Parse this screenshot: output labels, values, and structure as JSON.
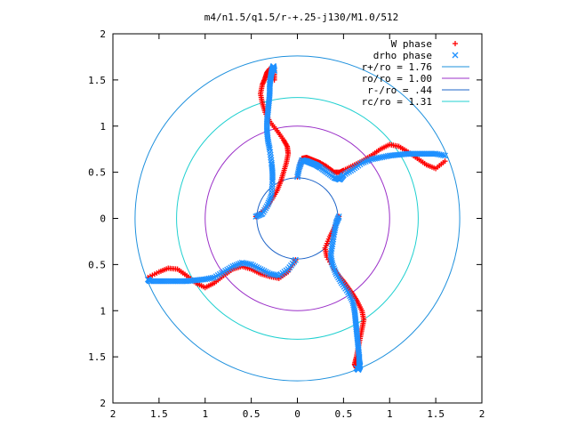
{
  "chart_data": {
    "type": "scatter",
    "title": "m4/n1.5/q1.5/r-+.25-j130/M1.0/512",
    "xlim": [
      -2,
      2
    ],
    "ylim": [
      -2,
      2
    ],
    "x_ticks": [
      -2,
      -1.5,
      -1,
      -0.5,
      0,
      0.5,
      1,
      1.5,
      2
    ],
    "y_ticks": [
      -2,
      -1.5,
      -1,
      -0.5,
      0,
      0.5,
      1,
      1.5,
      2
    ],
    "x_tick_labels": [
      "2",
      "1.5",
      "1",
      "0.5",
      "0",
      "0.5",
      "1",
      "1.5",
      "2"
    ],
    "y_tick_labels": [
      "2",
      "1.5",
      "1",
      "0.5",
      "0",
      "0.5",
      "1",
      "1.5",
      "2"
    ],
    "grid": false,
    "legend_position": "top-right",
    "legend": [
      {
        "label": "W phase",
        "kind": "point",
        "marker": "+",
        "color": "#ff0000"
      },
      {
        "label": "drho phase",
        "kind": "point",
        "marker": "x",
        "color": "#1e90ff"
      },
      {
        "label": "r+/ro = 1.76",
        "kind": "line",
        "color": "#1e90dd"
      },
      {
        "label": "ro/ro = 1.00",
        "kind": "line",
        "color": "#9b30c8"
      },
      {
        "label": "r-/ro = .44",
        "kind": "line",
        "color": "#1e64c8"
      },
      {
        "label": "rc/ro = 1.31",
        "kind": "line",
        "color": "#20d0d0"
      }
    ],
    "circles": [
      {
        "name": "r+/ro = 1.76",
        "radius": 1.76,
        "color": "#1e90dd"
      },
      {
        "name": "ro/ro = 1.00",
        "radius": 1.0,
        "color": "#9b30c8"
      },
      {
        "name": "r-/ro = .44",
        "radius": 0.44,
        "color": "#1e64c8"
      },
      {
        "name": "rc/ro = 1.31",
        "radius": 1.31,
        "color": "#20d0d0"
      }
    ],
    "series": [
      {
        "name": "W phase",
        "marker": "+",
        "color": "#ff0000",
        "arms": [
          {
            "x": [
              0.0,
              0.02,
              0.05,
              0.1,
              0.15,
              0.2,
              0.25,
              0.32,
              0.4,
              0.46,
              0.5,
              0.6,
              0.7,
              0.8,
              0.9,
              1.0,
              1.1,
              1.2,
              1.3,
              1.4,
              1.5,
              1.6
            ],
            "y": [
              0.45,
              0.55,
              0.65,
              0.66,
              0.64,
              0.62,
              0.6,
              0.56,
              0.5,
              0.5,
              0.52,
              0.57,
              0.62,
              0.68,
              0.75,
              0.8,
              0.78,
              0.72,
              0.65,
              0.58,
              0.54,
              0.62
            ]
          },
          {
            "x": [
              -0.45,
              -0.35,
              -0.28,
              -0.22,
              -0.18,
              -0.15,
              -0.12,
              -0.1,
              -0.11,
              -0.15,
              -0.22,
              -0.3,
              -0.35,
              -0.38,
              -0.4,
              -0.38,
              -0.35,
              -0.33,
              -0.3,
              -0.25,
              -0.25
            ],
            "y": [
              0.02,
              0.1,
              0.2,
              0.3,
              0.4,
              0.5,
              0.6,
              0.7,
              0.78,
              0.85,
              0.95,
              1.05,
              1.15,
              1.25,
              1.35,
              1.45,
              1.52,
              1.58,
              1.62,
              1.6,
              1.5
            ]
          },
          {
            "x": [
              -0.02,
              -0.1,
              -0.2,
              -0.3,
              -0.4,
              -0.5,
              -0.6,
              -0.7,
              -0.8,
              -0.9,
              -1.0,
              -1.1,
              -1.2,
              -1.3,
              -1.4,
              -1.5,
              -1.62
            ],
            "y": [
              -0.45,
              -0.58,
              -0.65,
              -0.63,
              -0.6,
              -0.55,
              -0.52,
              -0.55,
              -0.62,
              -0.7,
              -0.75,
              -0.7,
              -0.62,
              -0.55,
              -0.54,
              -0.58,
              -0.64
            ]
          },
          {
            "x": [
              0.45,
              0.4,
              0.35,
              0.3,
              0.32,
              0.4,
              0.45,
              0.5,
              0.55,
              0.6,
              0.65,
              0.7,
              0.72,
              0.7,
              0.68,
              0.66,
              0.64,
              0.62,
              0.64,
              0.66
            ],
            "y": [
              0.02,
              -0.1,
              -0.2,
              -0.32,
              -0.42,
              -0.55,
              -0.62,
              -0.68,
              -0.75,
              -0.82,
              -0.9,
              -1.0,
              -1.1,
              -1.2,
              -1.3,
              -1.4,
              -1.5,
              -1.58,
              -1.62,
              -1.55
            ]
          }
        ]
      },
      {
        "name": "drho phase",
        "marker": "x",
        "color": "#1e90ff",
        "arms": [
          {
            "x": [
              0.0,
              0.02,
              0.05,
              0.1,
              0.15,
              0.2,
              0.25,
              0.32,
              0.4,
              0.46,
              0.5,
              0.6,
              0.7,
              0.8,
              0.9,
              1.0,
              1.1,
              1.2,
              1.3,
              1.4,
              1.5,
              1.6
            ],
            "y": [
              0.45,
              0.55,
              0.63,
              0.62,
              0.6,
              0.58,
              0.55,
              0.5,
              0.44,
              0.42,
              0.47,
              0.53,
              0.6,
              0.64,
              0.66,
              0.68,
              0.69,
              0.7,
              0.7,
              0.7,
              0.7,
              0.68
            ]
          },
          {
            "x": [
              -0.45,
              -0.38,
              -0.32,
              -0.28,
              -0.27,
              -0.27,
              -0.28,
              -0.3,
              -0.32,
              -0.33,
              -0.33,
              -0.32,
              -0.31,
              -0.3,
              -0.3,
              -0.29,
              -0.28,
              -0.27,
              -0.26,
              -0.25
            ],
            "y": [
              0.02,
              0.05,
              0.15,
              0.25,
              0.4,
              0.5,
              0.6,
              0.75,
              0.85,
              0.95,
              1.05,
              1.15,
              1.25,
              1.35,
              1.45,
              1.52,
              1.58,
              1.62,
              1.65,
              1.6
            ]
          },
          {
            "x": [
              -0.02,
              -0.1,
              -0.2,
              -0.3,
              -0.4,
              -0.5,
              -0.6,
              -0.7,
              -0.8,
              -0.9,
              -1.0,
              -1.1,
              -1.2,
              -1.3,
              -1.4,
              -1.5,
              -1.6,
              -1.62
            ],
            "y": [
              -0.45,
              -0.55,
              -0.62,
              -0.6,
              -0.55,
              -0.5,
              -0.48,
              -0.52,
              -0.58,
              -0.64,
              -0.66,
              -0.67,
              -0.68,
              -0.68,
              -0.68,
              -0.68,
              -0.68,
              -0.66
            ]
          },
          {
            "x": [
              0.45,
              0.42,
              0.4,
              0.38,
              0.36,
              0.38,
              0.42,
              0.48,
              0.55,
              0.6,
              0.62,
              0.63,
              0.64,
              0.65,
              0.66,
              0.67,
              0.67,
              0.68,
              0.66,
              0.64
            ],
            "y": [
              0.02,
              -0.05,
              -0.15,
              -0.28,
              -0.4,
              -0.5,
              -0.6,
              -0.7,
              -0.8,
              -0.9,
              -1.0,
              -1.1,
              -1.2,
              -1.3,
              -1.4,
              -1.5,
              -1.55,
              -1.6,
              -1.64,
              -1.62
            ]
          }
        ]
      }
    ]
  }
}
